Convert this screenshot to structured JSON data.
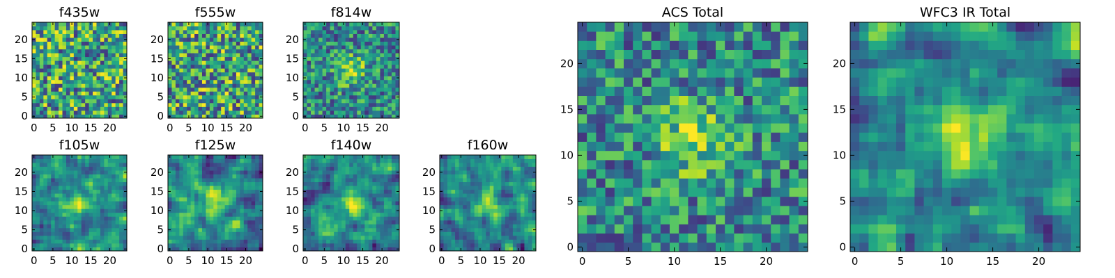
{
  "chart_data": [
    {
      "type": "heatmap",
      "title": "f435w",
      "xlim": [
        0,
        24
      ],
      "ylim": [
        0,
        24
      ],
      "xticks": [
        0,
        5,
        10,
        15,
        20
      ],
      "yticks": [
        0,
        5,
        10,
        15,
        20
      ],
      "xtick_labels": [
        "0",
        "5",
        "10",
        "15",
        "20"
      ],
      "ytick_labels": [
        "0",
        "5",
        "10",
        "15",
        "20"
      ],
      "colormap": "viridis",
      "structure": "noise",
      "seed": 11
    },
    {
      "type": "heatmap",
      "title": "f555w",
      "xlim": [
        0,
        24
      ],
      "ylim": [
        0,
        24
      ],
      "xticks": [
        0,
        5,
        10,
        15,
        20
      ],
      "yticks": [
        0,
        5,
        10,
        15,
        20
      ],
      "xtick_labels": [
        "0",
        "5",
        "10",
        "15",
        "20"
      ],
      "ytick_labels": [
        "0",
        "5",
        "10",
        "15",
        "20"
      ],
      "colormap": "viridis",
      "structure": "noise",
      "seed": 23
    },
    {
      "type": "heatmap",
      "title": "f814w",
      "xlim": [
        0,
        24
      ],
      "ylim": [
        0,
        24
      ],
      "xticks": [
        0,
        5,
        10,
        15,
        20
      ],
      "yticks": [
        0,
        5,
        10,
        15,
        20
      ],
      "xtick_labels": [
        "0",
        "5",
        "10",
        "15",
        "20"
      ],
      "ytick_labels": [
        "0",
        "5",
        "10",
        "15",
        "20"
      ],
      "colormap": "viridis",
      "structure": "central-source",
      "seed": 37
    },
    {
      "type": "heatmap",
      "title": "f105w",
      "xlim": [
        0,
        24
      ],
      "ylim": [
        0,
        24
      ],
      "xticks": [
        0,
        5,
        10,
        15,
        20
      ],
      "yticks": [
        0,
        5,
        10,
        15,
        20
      ],
      "xtick_labels": [
        "0",
        "5",
        "10",
        "15",
        "20"
      ],
      "ytick_labels": [
        "0",
        "5",
        "10",
        "15",
        "20"
      ],
      "colormap": "viridis",
      "structure": "smooth-source",
      "seed": 41
    },
    {
      "type": "heatmap",
      "title": "f125w",
      "xlim": [
        0,
        24
      ],
      "ylim": [
        0,
        24
      ],
      "xticks": [
        0,
        5,
        10,
        15,
        20
      ],
      "yticks": [
        0,
        5,
        10,
        15,
        20
      ],
      "xtick_labels": [
        "0",
        "5",
        "10",
        "15",
        "20"
      ],
      "ytick_labels": [
        "0",
        "5",
        "10",
        "15",
        "20"
      ],
      "colormap": "viridis",
      "structure": "smooth-source",
      "seed": 53
    },
    {
      "type": "heatmap",
      "title": "f140w",
      "xlim": [
        0,
        24
      ],
      "ylim": [
        0,
        24
      ],
      "xticks": [
        0,
        5,
        10,
        15,
        20
      ],
      "yticks": [
        0,
        5,
        10,
        15,
        20
      ],
      "xtick_labels": [
        "0",
        "5",
        "10",
        "15",
        "20"
      ],
      "ytick_labels": [
        "0",
        "5",
        "10",
        "15",
        "20"
      ],
      "colormap": "viridis",
      "structure": "smooth-source",
      "seed": 67
    },
    {
      "type": "heatmap",
      "title": "f160w",
      "xlim": [
        0,
        24
      ],
      "ylim": [
        0,
        24
      ],
      "xticks": [
        0,
        5,
        10,
        15,
        20
      ],
      "yticks": [
        0,
        5,
        10,
        15,
        20
      ],
      "xtick_labels": [
        "0",
        "5",
        "10",
        "15",
        "20"
      ],
      "ytick_labels": [
        "0",
        "5",
        "10",
        "15",
        "20"
      ],
      "colormap": "viridis",
      "structure": "smooth-source",
      "seed": 79
    },
    {
      "type": "heatmap",
      "title": "ACS Total",
      "xlim": [
        0,
        24
      ],
      "ylim": [
        0,
        24
      ],
      "xticks": [
        0,
        5,
        10,
        15,
        20
      ],
      "yticks": [
        0,
        5,
        10,
        15,
        20
      ],
      "xtick_labels": [
        "0",
        "5",
        "10",
        "15",
        "20"
      ],
      "ytick_labels": [
        "0",
        "5",
        "10",
        "15",
        "20"
      ],
      "colormap": "viridis",
      "structure": "central-source",
      "seed": 97
    },
    {
      "type": "heatmap",
      "title": "WFC3 IR Total",
      "xlim": [
        0,
        24
      ],
      "ylim": [
        0,
        24
      ],
      "xticks": [
        0,
        5,
        10,
        15,
        20
      ],
      "yticks": [
        0,
        5,
        10,
        15,
        20
      ],
      "xtick_labels": [
        "0",
        "5",
        "10",
        "15",
        "20"
      ],
      "ytick_labels": [
        "0",
        "5",
        "10",
        "15",
        "20"
      ],
      "colormap": "viridis",
      "structure": "smooth-source",
      "seed": 113
    }
  ]
}
